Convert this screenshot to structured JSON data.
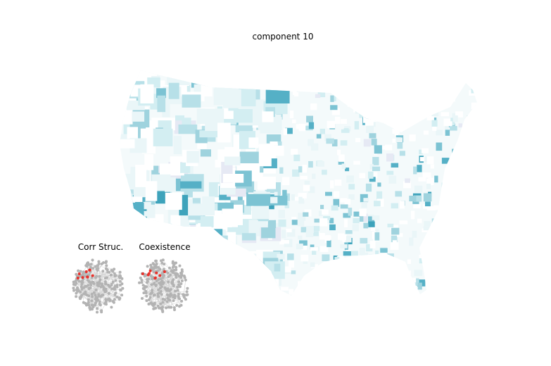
{
  "title": "component 10",
  "insets": [
    {
      "title": "Corr Struc."
    },
    {
      "title": "Coexistence"
    }
  ]
}
